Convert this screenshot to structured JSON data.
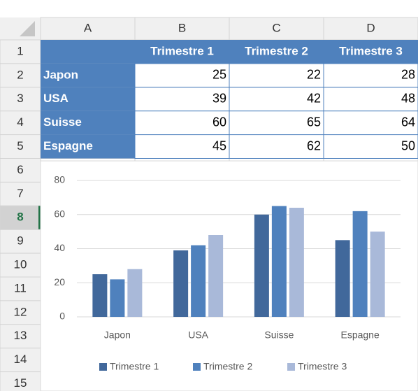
{
  "sheet": {
    "columns": [
      "A",
      "B",
      "C",
      "D"
    ],
    "rows": [
      "1",
      "2",
      "3",
      "4",
      "5",
      "6",
      "7",
      "8",
      "9",
      "10",
      "11",
      "12",
      "13",
      "14",
      "15"
    ],
    "header": [
      "Trimestre 1",
      "Trimestre 2",
      "Trimestre 3"
    ],
    "table": [
      {
        "label": "Japon",
        "values": [
          25,
          22,
          28
        ]
      },
      {
        "label": "USA",
        "values": [
          39,
          42,
          48
        ]
      },
      {
        "label": "Suisse",
        "values": [
          60,
          65,
          64
        ]
      },
      {
        "label": "Espagne",
        "values": [
          45,
          62,
          50
        ]
      }
    ]
  },
  "chart_data": {
    "type": "bar",
    "categories": [
      "Japon",
      "USA",
      "Suisse",
      "Espagne"
    ],
    "series": [
      {
        "name": "Trimestre 1",
        "color": "#41689b",
        "values": [
          25,
          39,
          60,
          45
        ]
      },
      {
        "name": "Trimestre 2",
        "color": "#4f81bd",
        "values": [
          22,
          42,
          65,
          62
        ]
      },
      {
        "name": "Trimestre 3",
        "color": "#a9b9d9",
        "values": [
          28,
          48,
          64,
          50
        ]
      }
    ],
    "ylim": [
      0,
      80
    ],
    "yticks": [
      0,
      20,
      40,
      60,
      80
    ],
    "grid": true,
    "legend": "bottom"
  }
}
